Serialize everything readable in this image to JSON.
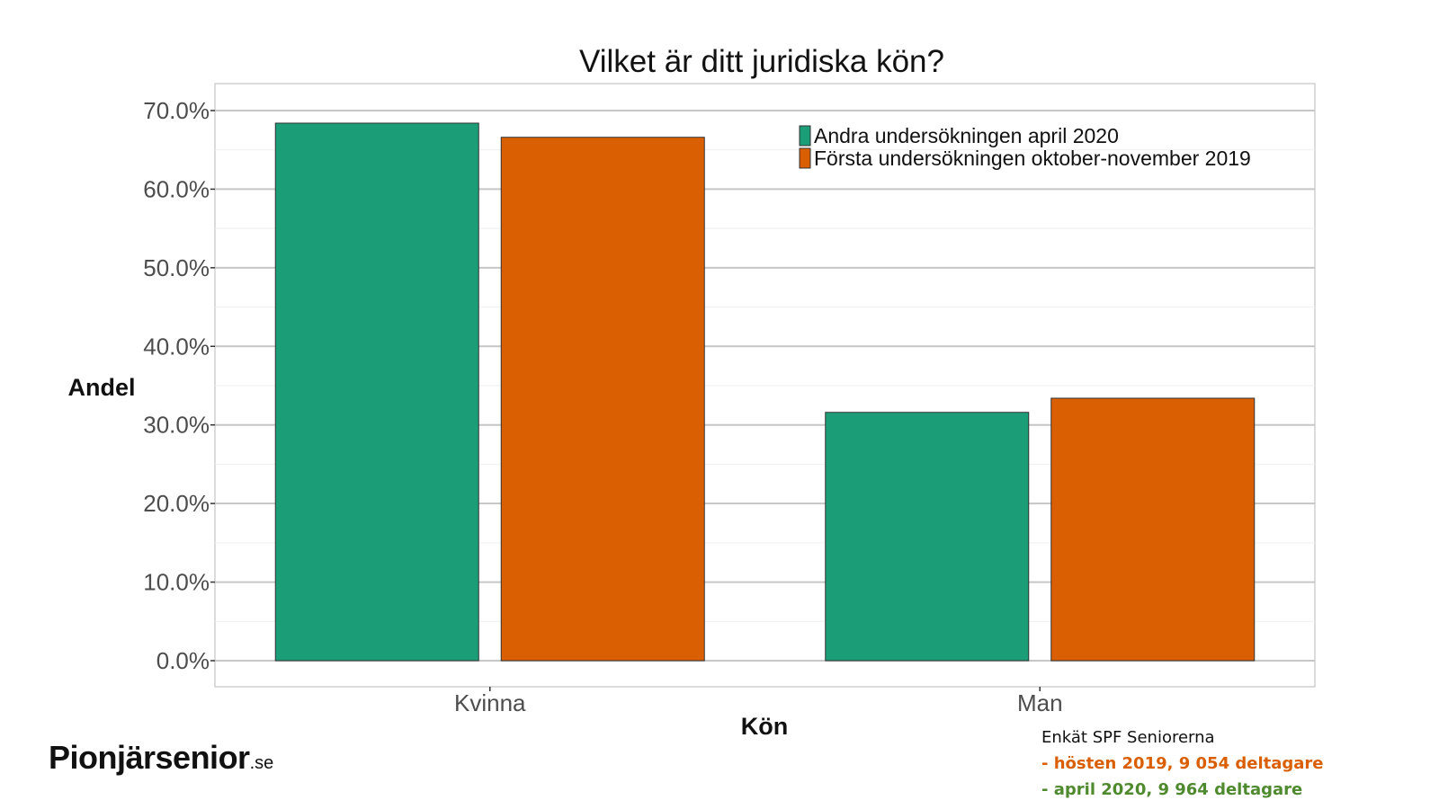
{
  "chart_data": {
    "type": "bar",
    "title": "Vilket är ditt juridiska kön?",
    "xlabel": "Kön",
    "ylabel": "Andel",
    "categories": [
      "Kvinna",
      "Man"
    ],
    "series": [
      {
        "name": "Andra undersökningen april 2020",
        "color": "#1b9e77",
        "values": [
          68.4,
          31.6
        ]
      },
      {
        "name": "Första undersökningen oktober-november 2019",
        "color": "#d95f02",
        "values": [
          66.6,
          33.4
        ]
      }
    ],
    "ylim": [
      0,
      73.5
    ],
    "yticks": [
      0,
      10,
      20,
      30,
      40,
      50,
      60,
      70
    ],
    "ytick_labels": [
      "0.0%",
      "10.0%",
      "20.0%",
      "30.0%",
      "40.0%",
      "50.0%",
      "60.0%",
      "70.0%"
    ],
    "grid": true,
    "legend_position": "top-right"
  },
  "footer": {
    "logo_main": "Pionjärsenior",
    "logo_suffix": ".se",
    "source_line1": "Enkät SPF Seniorerna",
    "source_line2": "- hösten 2019, 9 054 deltagare",
    "source_line3": "- april 2020, 9 964 deltagare"
  }
}
